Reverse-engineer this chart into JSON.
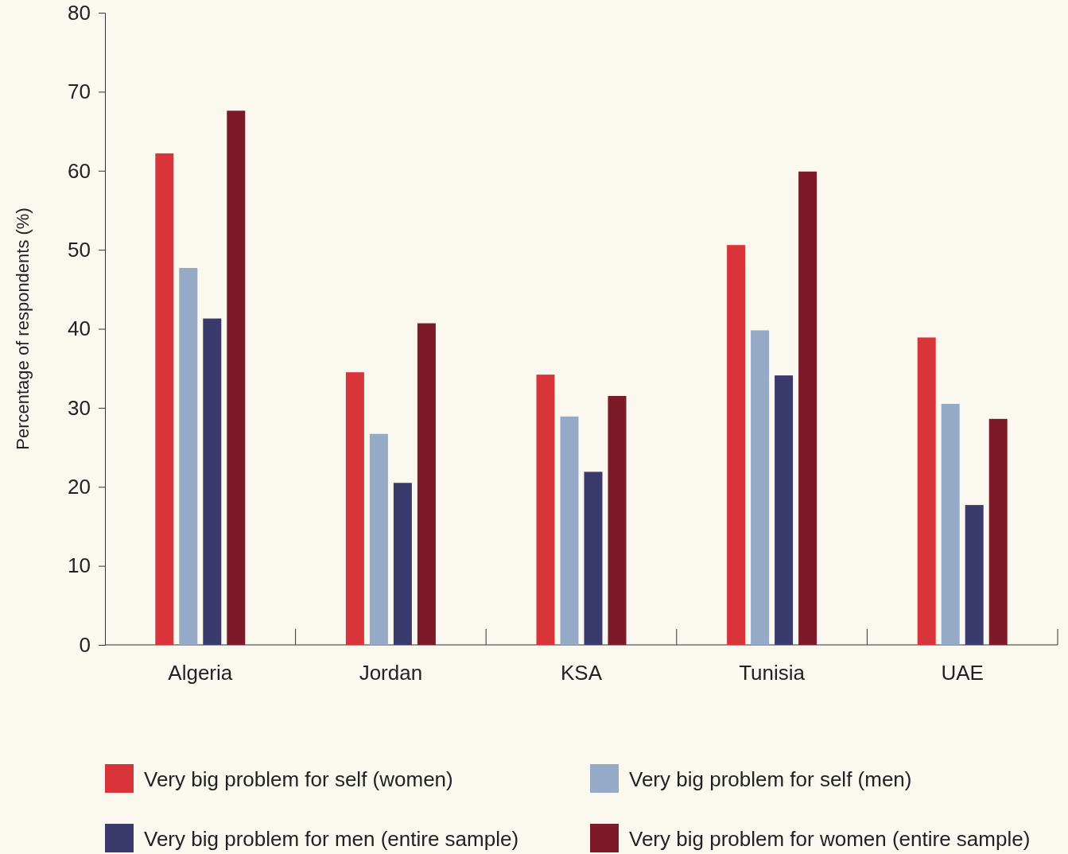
{
  "chart_data": {
    "type": "bar",
    "ylabel": "Percentage of respondents (%)",
    "categories": [
      "Algeria",
      "Jordan",
      "KSA",
      "Tunisia",
      "UAE"
    ],
    "series": [
      {
        "name": "Very big problem for self (women)",
        "color": "#d9343a",
        "values": [
          62.2,
          34.5,
          34.2,
          50.6,
          38.9
        ]
      },
      {
        "name": "Very big problem for self (men)",
        "color": "#94aac6",
        "values": [
          47.7,
          26.7,
          28.9,
          39.8,
          30.5
        ]
      },
      {
        "name": "Very big problem for men (entire sample)",
        "color": "#3a3a6c",
        "values": [
          41.3,
          20.5,
          21.9,
          34.1,
          17.7
        ]
      },
      {
        "name": "Very big problem for women (entire sample)",
        "color": "#7c1a2a",
        "values": [
          67.6,
          40.7,
          31.5,
          59.9,
          28.6
        ]
      }
    ],
    "ylim": [
      0,
      80
    ],
    "yticks": [
      0,
      10,
      20,
      30,
      40,
      50,
      60,
      70,
      80
    ],
    "grid": false,
    "legend": "bottom"
  }
}
